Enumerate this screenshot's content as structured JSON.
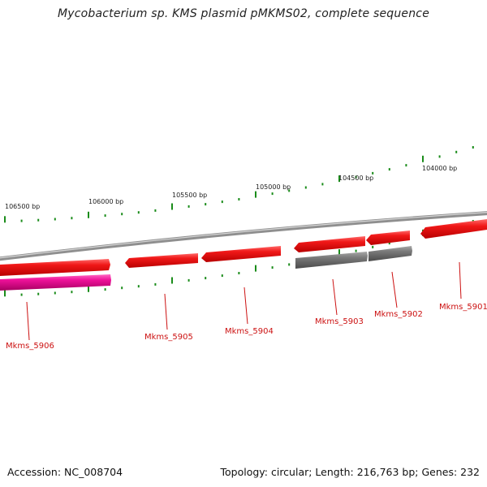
{
  "title": "Mycobacterium sp. KMS plasmid pMKMS02, complete sequence",
  "scale_labels": [
    "106500 bp",
    "106000 bp",
    "105500 bp",
    "105000 bp",
    "104500 bp",
    "104000 bp"
  ],
  "genes": [
    {
      "label": "Mkms_5906",
      "strand": "forward",
      "color": "#ee1199"
    },
    {
      "label": "Mkms_5905",
      "strand": "reverse",
      "color": "#ee1111"
    },
    {
      "label": "Mkms_5904",
      "strand": "reverse",
      "color": "#ee1111"
    },
    {
      "label": "Mkms_5903",
      "strand": "forward",
      "color": "#777777"
    },
    {
      "label": "Mkms_5902",
      "strand": "forward",
      "color": "#777777"
    },
    {
      "label": "Mkms_5901",
      "strand": "reverse",
      "color": "#ee1111"
    }
  ],
  "colors": {
    "backbone": "#8a8a8a",
    "tick": "#1a8c1a",
    "gene_label": "#cc1111"
  },
  "footer": {
    "accession": "Accession: NC_008704",
    "topology": "Topology: circular; Length: 216,763 bp; Genes: 232"
  }
}
